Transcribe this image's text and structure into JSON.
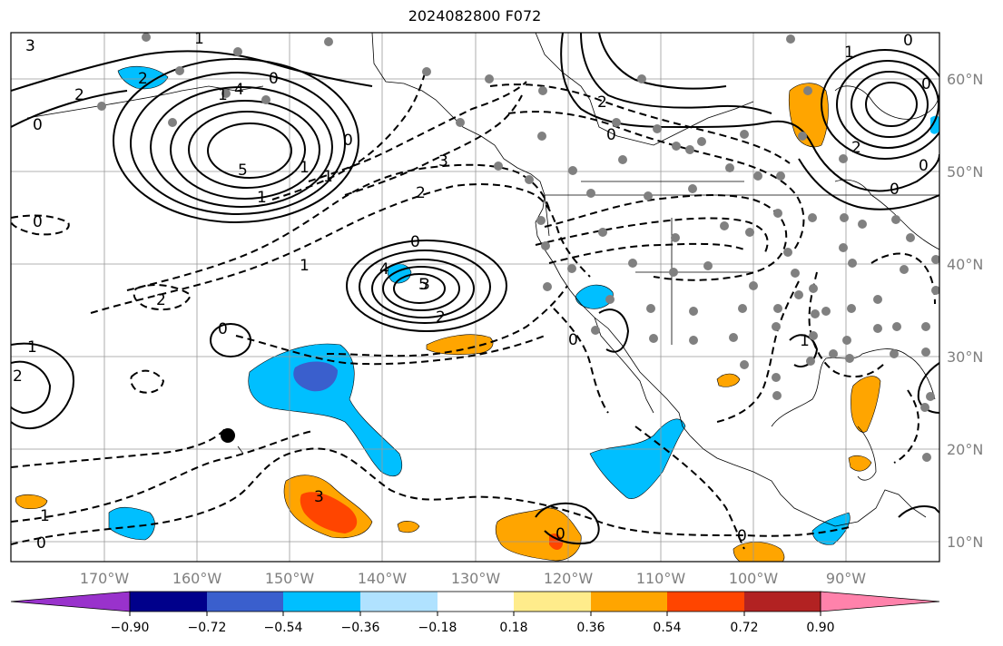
{
  "title": "2024082800 F072",
  "longitude_labels": [
    "170°W",
    "160°W",
    "150°W",
    "140°W",
    "130°W",
    "120°W",
    "110°W",
    "100°W",
    "90°W"
  ],
  "latitude_labels": [
    "60°N",
    "50°N",
    "40°N",
    "30°N",
    "20°N",
    "10°N"
  ],
  "colorbar": {
    "tick_labels": [
      "−0.90",
      "−0.72",
      "−0.54",
      "−0.36",
      "−0.18",
      "0.18",
      "0.36",
      "0.54",
      "0.72",
      "0.90"
    ],
    "colors": [
      "#9932cc",
      "#00008b",
      "#3a5fcd",
      "#00bfff",
      "#b0e2ff",
      "#ffffff",
      "#ffec8b",
      "#ffa500",
      "#ff4500",
      "#b22222",
      "#ff82ab"
    ]
  },
  "contour_labels": [
    "1",
    "2",
    "0",
    "4",
    "3",
    "2",
    "1",
    "0",
    "5",
    "1",
    "1",
    "1",
    "0",
    "3",
    "2",
    "0",
    "2",
    "1",
    "0",
    "4",
    "5",
    "3",
    "2",
    "0",
    "1",
    "2",
    "1",
    "0",
    "3",
    "2",
    "0",
    "0",
    "0",
    "1",
    "0",
    "0",
    "2",
    "0",
    "0",
    "1",
    "0"
  ],
  "map_features": {
    "stations": "gray-dots",
    "hawaii_marker": "black-dot"
  }
}
